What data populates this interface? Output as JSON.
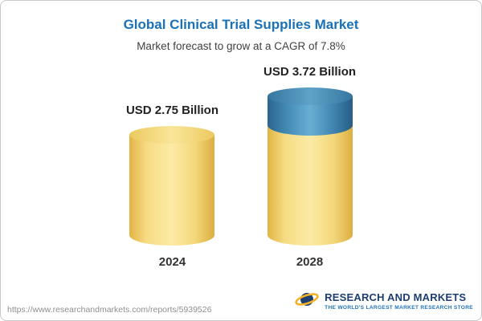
{
  "chart_data": {
    "type": "bar",
    "subtype": "3d-cylinder",
    "title": "Global Clinical Trial Supplies Market",
    "subtitle": "Market forecast to grow at a CAGR of 7.8%",
    "cagr_percent": 7.8,
    "unit": "USD Billion",
    "categories": [
      "2024",
      "2028"
    ],
    "values": [
      2.75,
      3.72
    ],
    "value_labels": [
      "USD 2.75 Billion",
      "USD 3.72 Billion"
    ],
    "growth_segment": {
      "category": "2028",
      "from_value": 2.75,
      "to_value": 3.72
    },
    "legend": "none",
    "grid": "off",
    "colors": {
      "bar_base": "#f2d574",
      "bar_growth": "#4a90ba",
      "title_text": "#1a71b8"
    }
  },
  "footer": {
    "url": "https://www.researchandmarkets.com/reports/5939526",
    "logo_name": "RESEARCH AND MARKETS",
    "logo_tagline": "THE WORLD'S LARGEST MARKET RESEARCH STORE"
  }
}
